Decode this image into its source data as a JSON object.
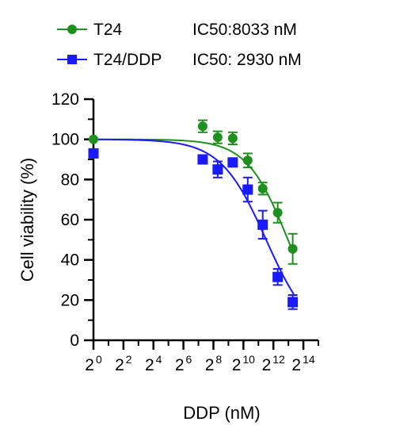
{
  "chart_data": {
    "type": "scatter",
    "xlabel": "DDP (nM)",
    "ylabel": "Cell viability (%)",
    "x_scale": "log2",
    "xlim": [
      1,
      32768
    ],
    "ylim": [
      0,
      120
    ],
    "y_ticks": [
      0,
      20,
      40,
      60,
      80,
      100,
      120
    ],
    "x_ticks": [
      {
        "base": "2",
        "exp": "0"
      },
      {
        "base": "2",
        "exp": "2"
      },
      {
        "base": "2",
        "exp": "4"
      },
      {
        "base": "2",
        "exp": "6"
      },
      {
        "base": "2",
        "exp": "8"
      },
      {
        "base": "2",
        "exp": "10"
      },
      {
        "base": "2",
        "exp": "12"
      },
      {
        "base": "2",
        "exp": "14"
      }
    ],
    "grid": false,
    "legend_position": "top",
    "series": [
      {
        "name": "T24",
        "ic50_text": "IC50:8033 nM",
        "color": "#1f8f1f",
        "marker": "circle",
        "x": [
          1,
          156,
          312,
          625,
          1250,
          2500,
          5000,
          10000
        ],
        "y": [
          100,
          106.5,
          101,
          100.5,
          89.5,
          75.5,
          63.5,
          45.5
        ],
        "err": [
          0,
          3,
          3,
          3,
          3.5,
          3,
          5,
          7.5
        ],
        "fit_ic50": 8033,
        "fit_hill": 1.05
      },
      {
        "name": "T24/DDP",
        "ic50_text": "IC50: 2930 nM",
        "color": "#1a1aff",
        "marker": "square",
        "x": [
          1,
          156,
          312,
          625,
          1250,
          2500,
          5000,
          10000
        ],
        "y": [
          93,
          90,
          85,
          88.5,
          75,
          57.5,
          31.5,
          19
        ],
        "err": [
          0,
          0,
          4,
          0,
          6,
          7,
          4,
          3.5
        ],
        "fit_ic50": 2930,
        "fit_hill": 0.95
      }
    ]
  }
}
